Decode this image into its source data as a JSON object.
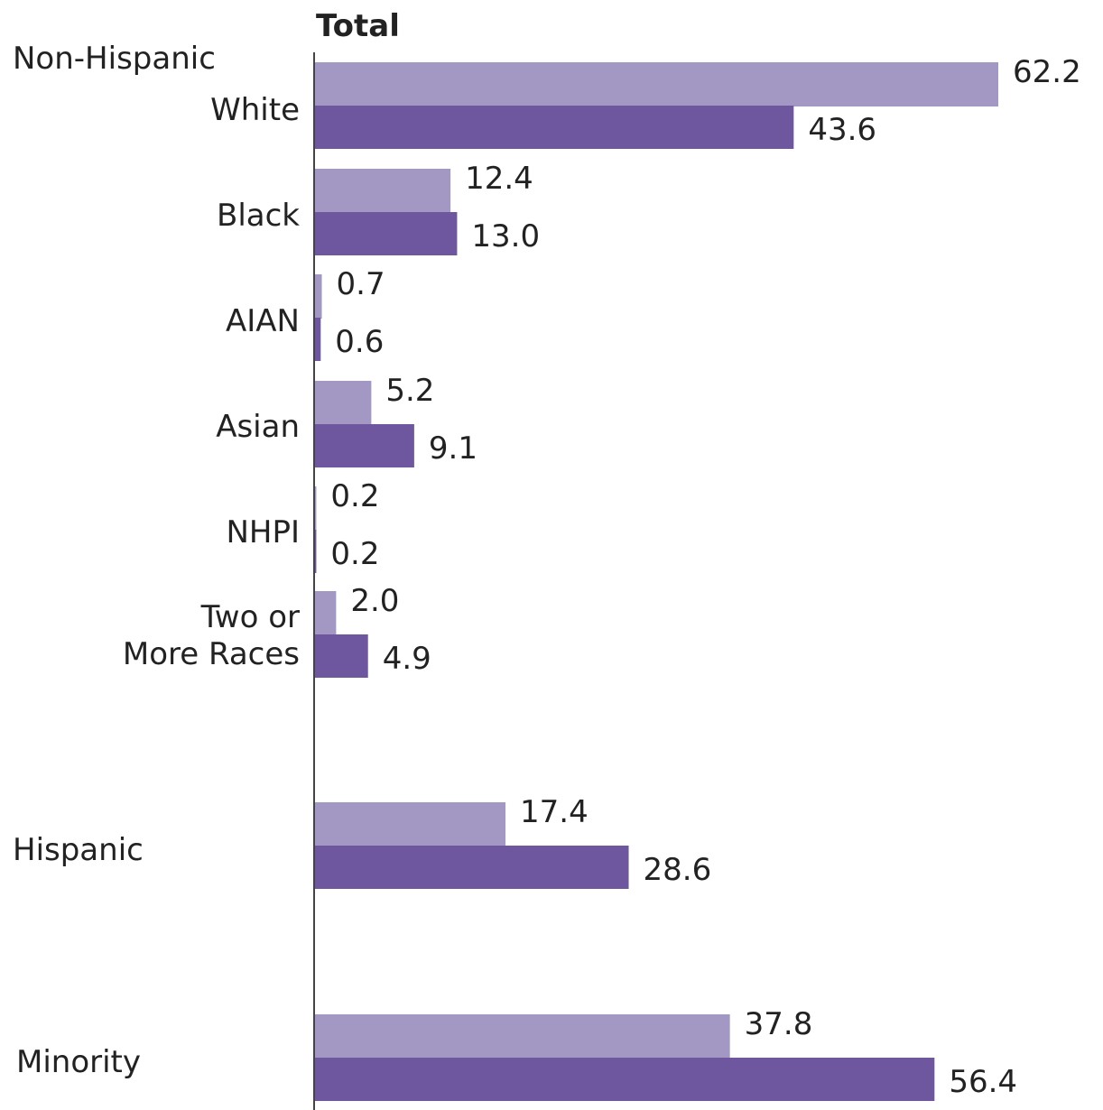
{
  "chart_data": {
    "type": "bar",
    "orientation": "horizontal",
    "title": "Total",
    "group_label": "Non-Hispanic",
    "categories": [
      "White",
      "Black",
      "AIAN",
      "Asian",
      "NHPI",
      "Two or More Races",
      "Hispanic",
      "Minority"
    ],
    "category_lines": [
      [
        "White"
      ],
      [
        "Black"
      ],
      [
        "AIAN"
      ],
      [
        "Asian"
      ],
      [
        "NHPI"
      ],
      [
        "Two or",
        "More Races"
      ],
      [
        "Hispanic"
      ],
      [
        "Minority"
      ]
    ],
    "series": [
      {
        "values": [
          62.2,
          12.4,
          0.7,
          5.2,
          0.2,
          2.0,
          17.4,
          37.8
        ],
        "labels": [
          "62.2",
          "12.4",
          "0.7",
          "5.2",
          "0.2",
          "2.0",
          "17.4",
          "37.8"
        ],
        "color": "#a398c4"
      },
      {
        "values": [
          43.6,
          13.0,
          0.6,
          9.1,
          0.2,
          4.9,
          28.6,
          56.4
        ],
        "labels": [
          "43.6",
          "13.0",
          "0.6",
          "9.1",
          "0.2",
          "4.9",
          "28.6",
          "56.4"
        ],
        "color": "#6f579f"
      }
    ],
    "axis_color": "#444444",
    "xlim": [
      0,
      62.2
    ],
    "grid": false,
    "legend": "none"
  }
}
